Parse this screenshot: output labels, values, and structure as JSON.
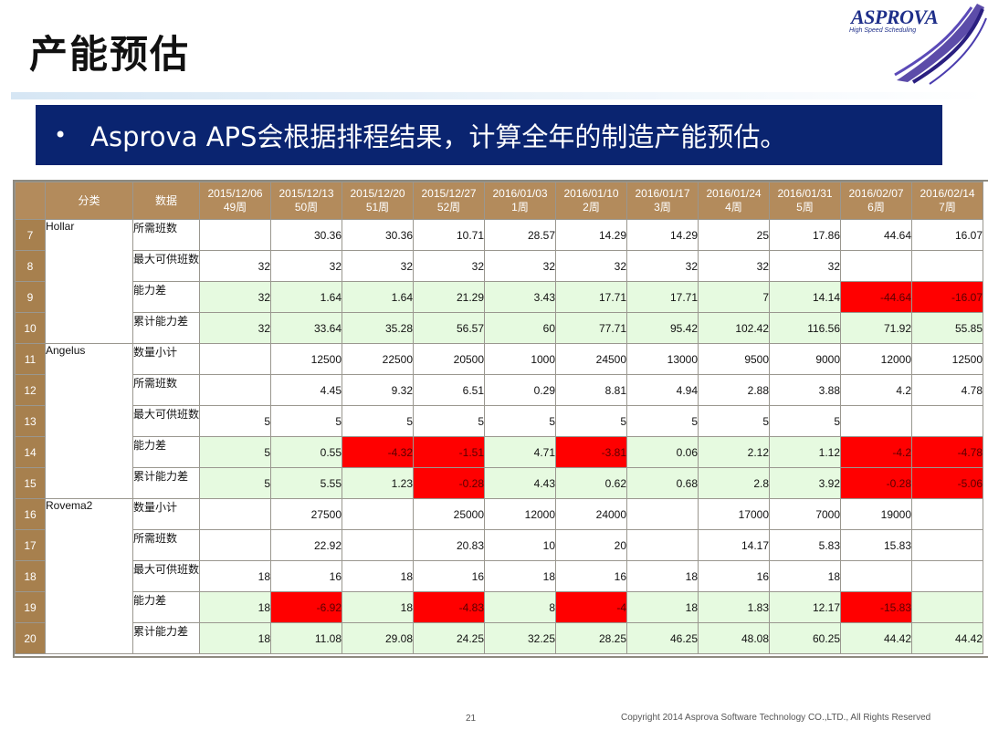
{
  "slide": {
    "title": "产能预估",
    "bullet": "•",
    "banner_text": "Asprova APS会根据排程结果，计算全年的制造产能预估。",
    "page_number": "21",
    "copyright": "Copyright 2014 Asprova Software Technology CO.,LTD., All Rights Reserved"
  },
  "logo": {
    "name": "ASPROVA",
    "tagline": "High Speed Scheduling",
    "color": "#1f2f8a"
  },
  "colors": {
    "banner_bg": "#0a2470",
    "header_bg": "#b38b5c",
    "rownum_bg": "#a7804e",
    "green_row": "#e6fae0",
    "negative": "#ff0000"
  },
  "table": {
    "headers": {
      "category": "分类",
      "data": "数据",
      "dates": [
        {
          "date": "2015/12/06",
          "week": "49周"
        },
        {
          "date": "2015/12/13",
          "week": "50周"
        },
        {
          "date": "2015/12/20",
          "week": "51周"
        },
        {
          "date": "2015/12/27",
          "week": "52周"
        },
        {
          "date": "2016/01/03",
          "week": "1周"
        },
        {
          "date": "2016/01/10",
          "week": "2周"
        },
        {
          "date": "2016/01/17",
          "week": "3周"
        },
        {
          "date": "2016/01/24",
          "week": "4周"
        },
        {
          "date": "2016/01/31",
          "week": "5周"
        },
        {
          "date": "2016/02/07",
          "week": "6周"
        },
        {
          "date": "2016/02/14",
          "week": "7周"
        }
      ]
    },
    "groups": [
      {
        "name": "Hollar",
        "rows": [
          {
            "num": "7",
            "label": "所需班数",
            "green": false,
            "values": [
              "",
              "30.36",
              "30.36",
              "10.71",
              "28.57",
              "14.29",
              "14.29",
              "25",
              "17.86",
              "44.64",
              "16.07"
            ]
          },
          {
            "num": "8",
            "label": "最大可供班数",
            "green": false,
            "values": [
              "32",
              "32",
              "32",
              "32",
              "32",
              "32",
              "32",
              "32",
              "32",
              "",
              ""
            ]
          },
          {
            "num": "9",
            "label": "能力差",
            "green": true,
            "values": [
              "32",
              "1.64",
              "1.64",
              "21.29",
              "3.43",
              "17.71",
              "17.71",
              "7",
              "14.14",
              "-44.64",
              "-16.07"
            ]
          },
          {
            "num": "10",
            "label": "累计能力差",
            "green": true,
            "values": [
              "32",
              "33.64",
              "35.28",
              "56.57",
              "60",
              "77.71",
              "95.42",
              "102.42",
              "116.56",
              "71.92",
              "55.85"
            ]
          }
        ]
      },
      {
        "name": "Angelus",
        "rows": [
          {
            "num": "11",
            "label": "数量小计",
            "green": false,
            "values": [
              "",
              "12500",
              "22500",
              "20500",
              "1000",
              "24500",
              "13000",
              "9500",
              "9000",
              "12000",
              "12500"
            ]
          },
          {
            "num": "12",
            "label": "所需班数",
            "green": false,
            "values": [
              "",
              "4.45",
              "9.32",
              "6.51",
              "0.29",
              "8.81",
              "4.94",
              "2.88",
              "3.88",
              "4.2",
              "4.78"
            ]
          },
          {
            "num": "13",
            "label": "最大可供班数",
            "green": false,
            "values": [
              "5",
              "5",
              "5",
              "5",
              "5",
              "5",
              "5",
              "5",
              "5",
              "",
              ""
            ]
          },
          {
            "num": "14",
            "label": "能力差",
            "green": true,
            "values": [
              "5",
              "0.55",
              "-4.32",
              "-1.51",
              "4.71",
              "-3.81",
              "0.06",
              "2.12",
              "1.12",
              "-4.2",
              "-4.78"
            ]
          },
          {
            "num": "15",
            "label": "累计能力差",
            "green": true,
            "values": [
              "5",
              "5.55",
              "1.23",
              "-0.28",
              "4.43",
              "0.62",
              "0.68",
              "2.8",
              "3.92",
              "-0.28",
              "-5.06"
            ]
          }
        ]
      },
      {
        "name": "Rovema2",
        "rows": [
          {
            "num": "16",
            "label": "数量小计",
            "green": false,
            "values": [
              "",
              "27500",
              "",
              "25000",
              "12000",
              "24000",
              "",
              "17000",
              "7000",
              "19000",
              ""
            ]
          },
          {
            "num": "17",
            "label": "所需班数",
            "green": false,
            "values": [
              "",
              "22.92",
              "",
              "20.83",
              "10",
              "20",
              "",
              "14.17",
              "5.83",
              "15.83",
              ""
            ]
          },
          {
            "num": "18",
            "label": "最大可供班数",
            "green": false,
            "values": [
              "18",
              "16",
              "18",
              "16",
              "18",
              "16",
              "18",
              "16",
              "18",
              "",
              ""
            ]
          },
          {
            "num": "19",
            "label": "能力差",
            "green": true,
            "values": [
              "18",
              "-6.92",
              "18",
              "-4.83",
              "8",
              "-4",
              "18",
              "1.83",
              "12.17",
              "-15.83",
              ""
            ]
          },
          {
            "num": "20",
            "label": "累计能力差",
            "green": true,
            "values": [
              "18",
              "11.08",
              "29.08",
              "24.25",
              "32.25",
              "28.25",
              "46.25",
              "48.08",
              "60.25",
              "44.42",
              "44.42"
            ]
          }
        ]
      }
    ]
  }
}
